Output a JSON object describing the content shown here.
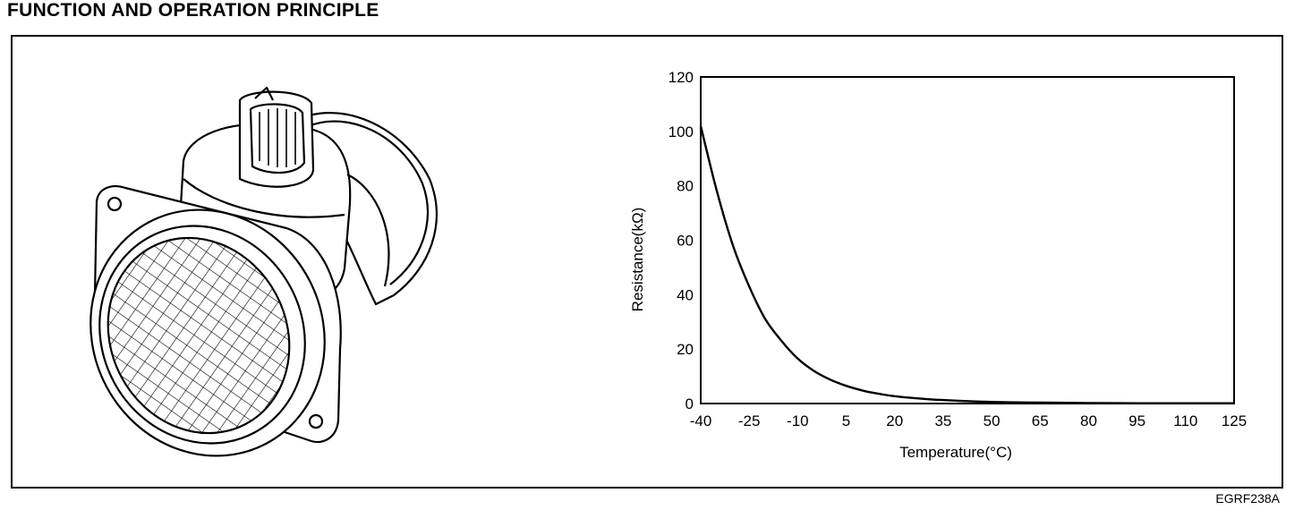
{
  "page": {
    "heading": "FUNCTION AND OPERATION PRINCIPLE",
    "figure_code": "EGRF238A"
  },
  "illustration": {
    "icon": "mass-air-flow-sensor-icon"
  },
  "chart_data": {
    "type": "line",
    "title": "",
    "xlabel": "Temperature(°C)",
    "ylabel": "Resistance(kΩ)",
    "xlim": [
      -40,
      125
    ],
    "ylim": [
      0,
      120
    ],
    "x_ticks": [
      -40,
      -25,
      -10,
      5,
      20,
      35,
      50,
      65,
      80,
      95,
      110,
      125
    ],
    "y_ticks": [
      0,
      20,
      40,
      60,
      80,
      100,
      120
    ],
    "grid": false,
    "legend": "none",
    "series": [
      {
        "x": [
          -40,
          -35,
          -30,
          -25,
          -20,
          -15,
          -10,
          -5,
          0,
          5,
          10,
          15,
          20,
          30,
          40,
          50,
          60,
          70,
          80,
          95,
          110,
          125
        ],
        "values": [
          102,
          78,
          58,
          43,
          31,
          23,
          16.5,
          12,
          8.8,
          6.5,
          4.8,
          3.6,
          2.7,
          1.6,
          1.0,
          0.6,
          0.4,
          0.3,
          0.2,
          0.1,
          0.1,
          0.1
        ]
      }
    ]
  }
}
